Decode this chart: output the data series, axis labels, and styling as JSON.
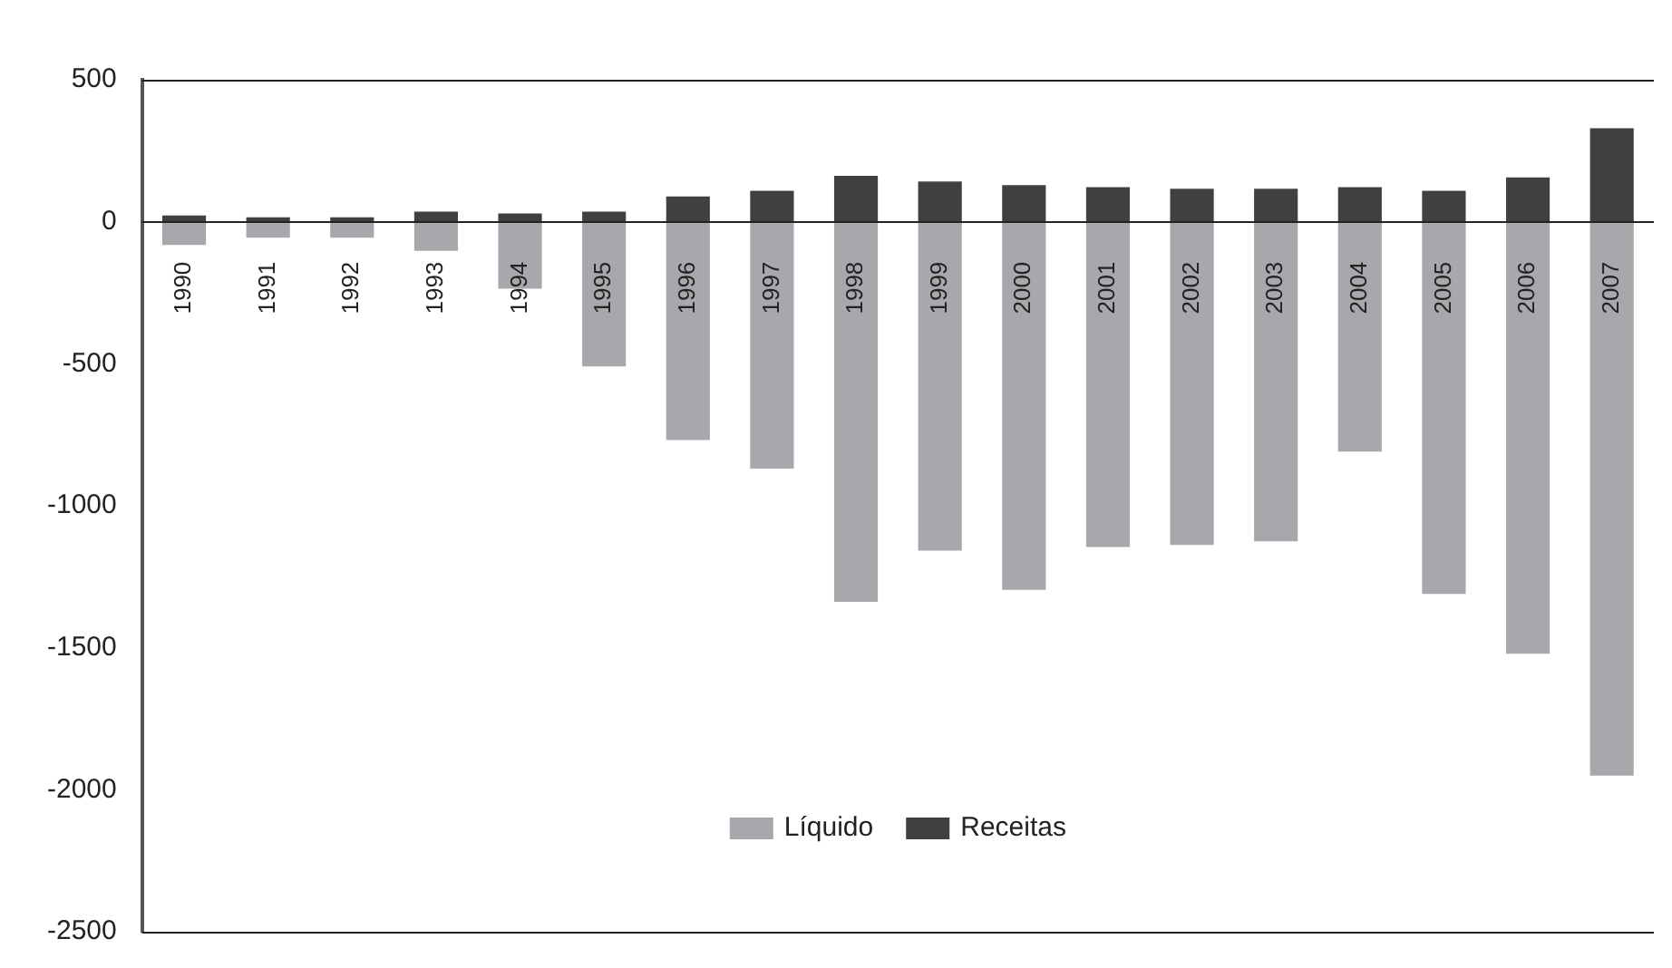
{
  "chart_data": {
    "type": "bar",
    "stacked": true,
    "categories": [
      "1990",
      "1991",
      "1992",
      "1993",
      "1994",
      "1995",
      "1996",
      "1997",
      "1998",
      "1999",
      "2000",
      "2001",
      "2002",
      "2003",
      "2004",
      "2005",
      "2006",
      "2007"
    ],
    "series": [
      {
        "name": "Líquido",
        "color": "#a7a8ab",
        "values": [
          -82,
          -56,
          -56,
          -102,
          -236,
          -509,
          -769,
          -869,
          -1338,
          -1158,
          -1296,
          -1145,
          -1138,
          -1125,
          -809,
          -1310,
          -1521,
          -1950
        ]
      },
      {
        "name": "Receitas",
        "color": "#404040",
        "values": [
          22,
          16,
          16,
          36,
          29,
          36,
          89,
          109,
          162,
          142,
          129,
          122,
          116,
          116,
          122,
          109,
          156,
          329
        ]
      }
    ],
    "ylim": [
      -2500,
      500
    ],
    "yticks": [
      -2500,
      -2000,
      -1500,
      -1000,
      -500,
      0,
      500
    ],
    "grid": false,
    "legend": "bottom"
  }
}
